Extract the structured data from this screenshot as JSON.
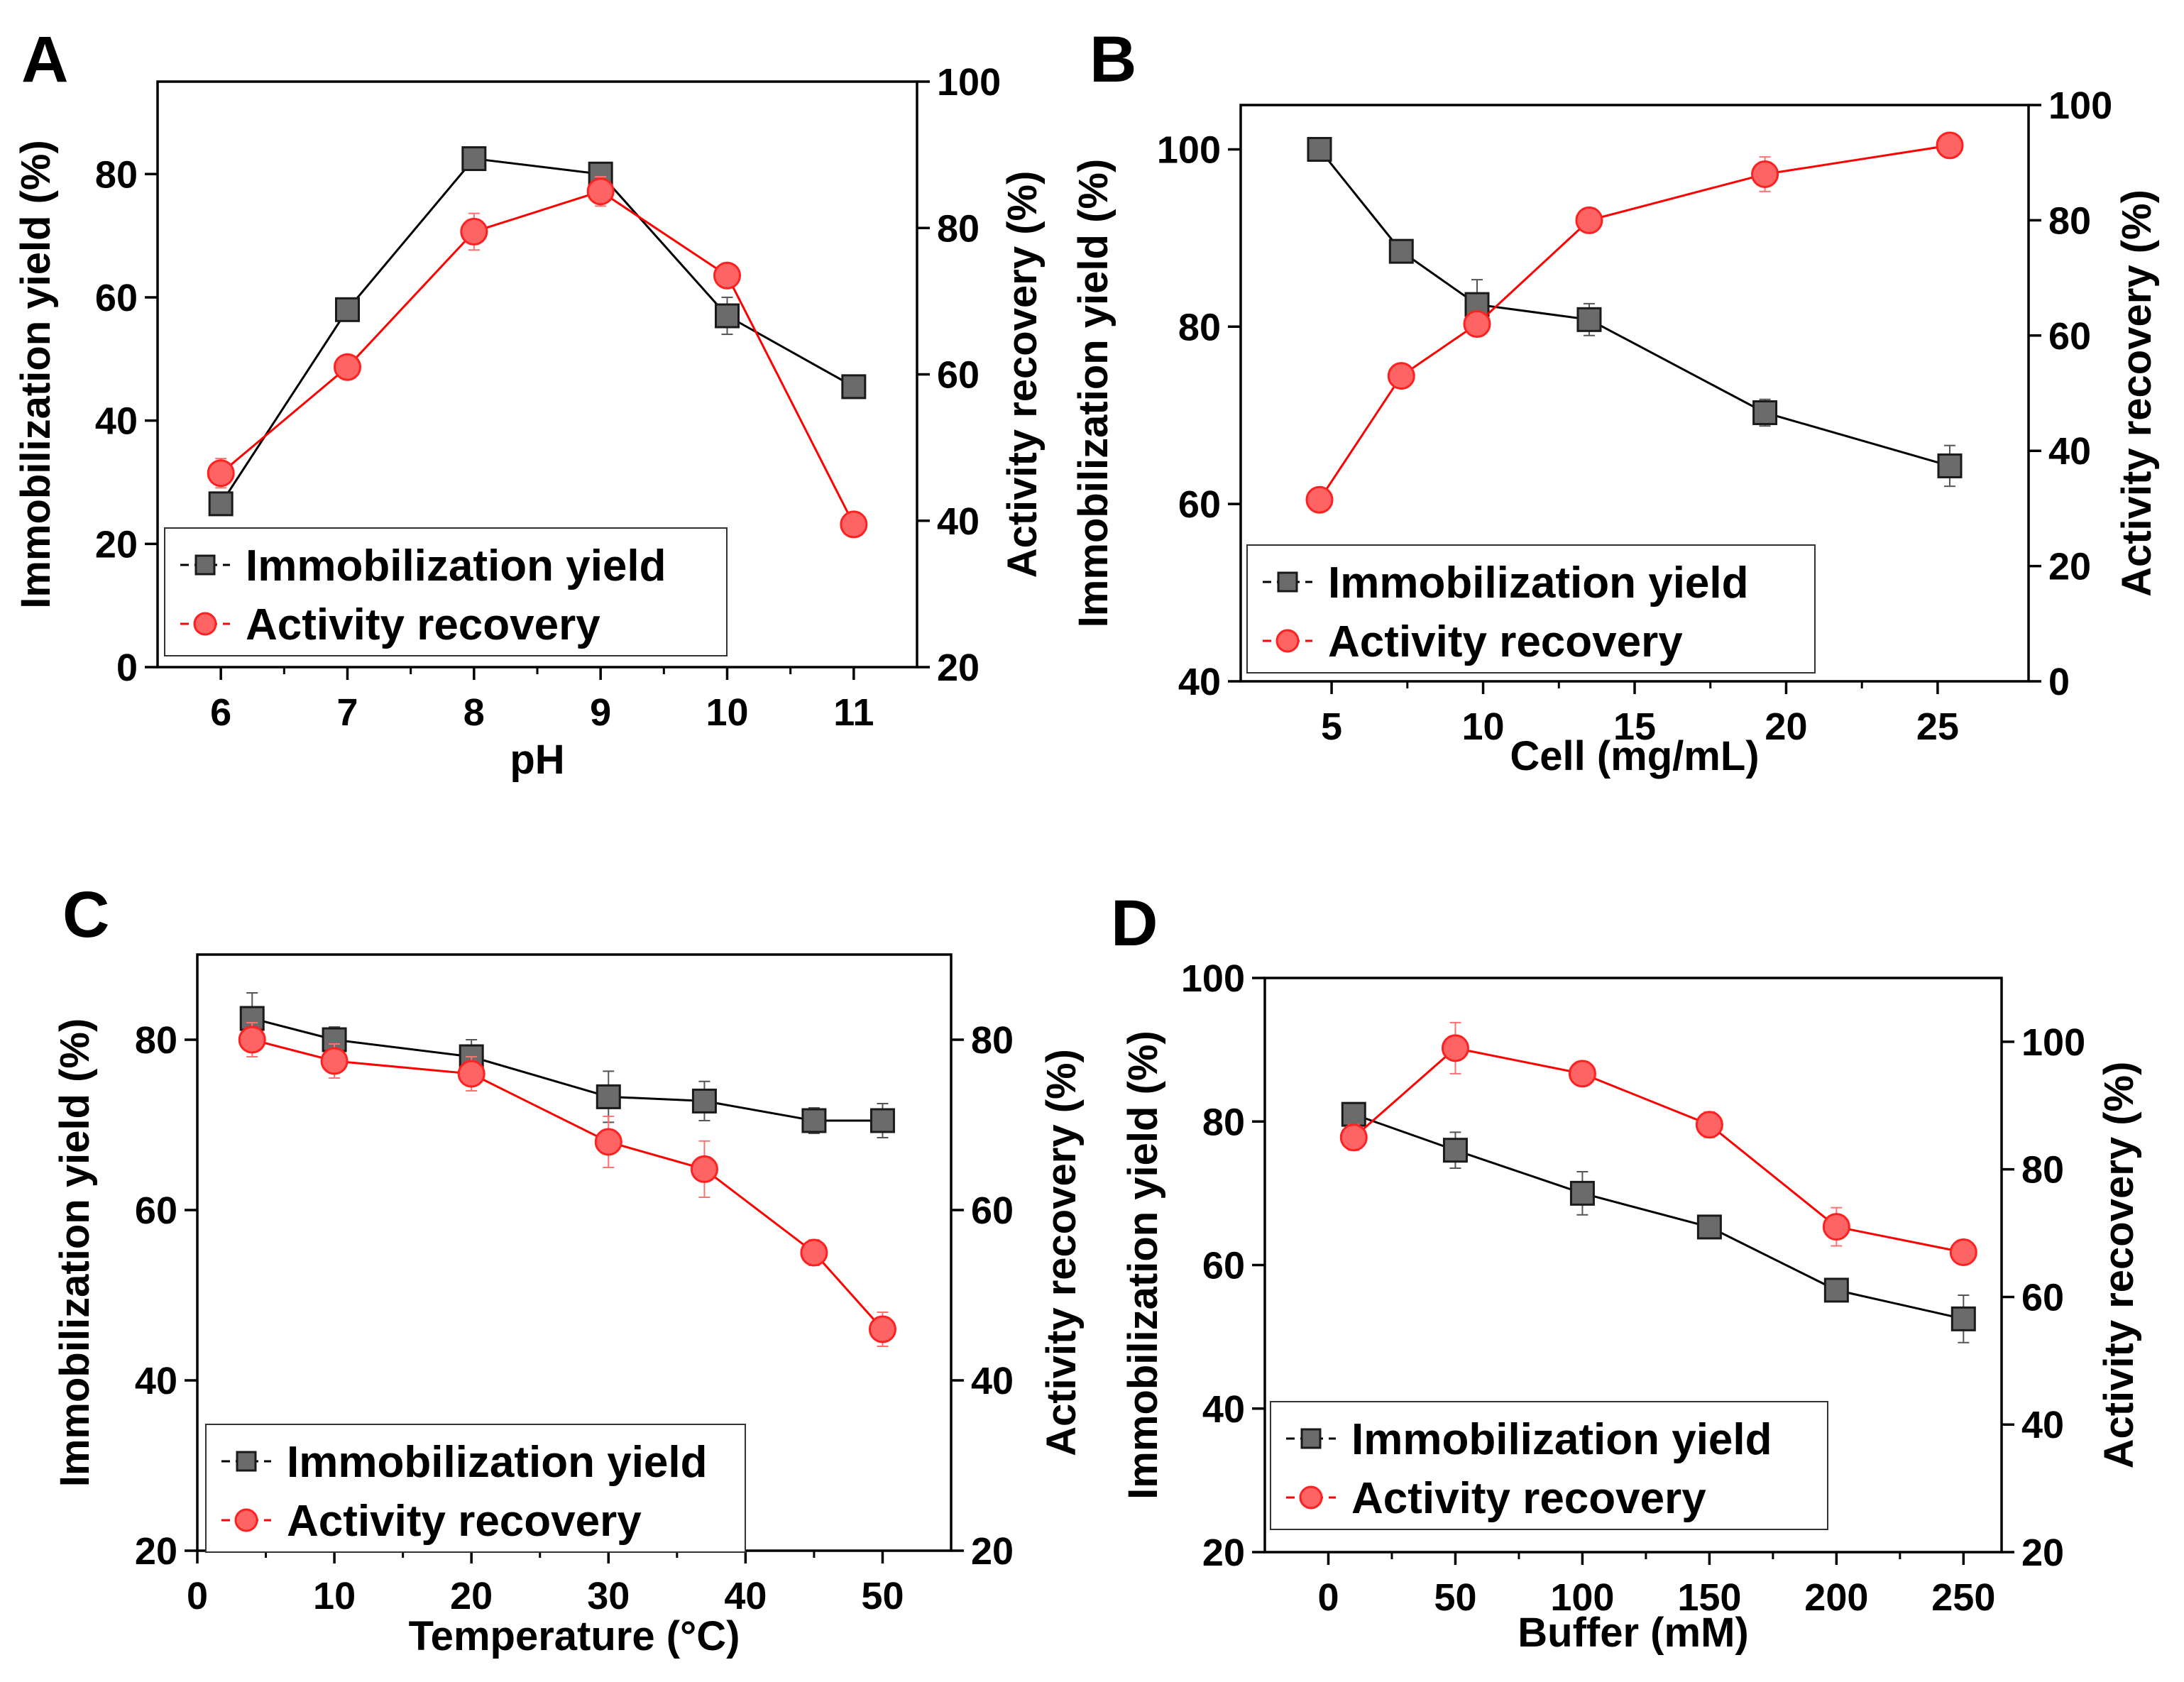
{
  "colors": {
    "immobilization": "#6b6b6b",
    "immobilization_edge": "#1a1a1a",
    "activity": "#ff6464",
    "activity_edge": "#ff2020"
  },
  "legend": {
    "immobilization": "Immobilization yield",
    "activity": "Activity recovery"
  },
  "chart_data": [
    {
      "type": "line",
      "panel": "A",
      "xlabel": "pH",
      "ylabel": "Immobilization yield (%)",
      "y2label": "Activity recovery (%)",
      "xlim": [
        5.5,
        11.5
      ],
      "ylim": [
        0,
        95
      ],
      "y2lim": [
        20,
        100
      ],
      "xticks": [
        6,
        7,
        8,
        9,
        10,
        11
      ],
      "yticks": [
        0,
        20,
        40,
        60,
        80
      ],
      "y2ticks": [
        20,
        40,
        60,
        80,
        100
      ],
      "x": [
        6,
        7,
        8,
        9,
        10,
        11
      ],
      "series": [
        {
          "name": "Immobilization yield",
          "axis": "left",
          "marker": "square",
          "values": [
            26.5,
            58,
            82.5,
            80,
            57,
            45.5
          ],
          "errors": [
            1,
            1.5,
            1,
            1.5,
            3,
            1
          ]
        },
        {
          "name": "Activity recovery",
          "axis": "right",
          "marker": "circle",
          "values": [
            46.5,
            61,
            79.5,
            85,
            73.5,
            39.5
          ],
          "errors": [
            2,
            1.5,
            2.5,
            2,
            1.5,
            1.5
          ]
        }
      ]
    },
    {
      "type": "line",
      "panel": "B",
      "xlabel": "Cell (mg/mL)",
      "ylabel": "Immobilization yield (%)",
      "y2label": "Activity recovery (%)",
      "xlim": [
        2,
        28
      ],
      "ylim": [
        40,
        105
      ],
      "y2lim": [
        0,
        100
      ],
      "xticks": [
        5,
        10,
        15,
        20,
        25
      ],
      "yticks": [
        40,
        60,
        80,
        100
      ],
      "y2ticks": [
        0,
        20,
        40,
        60,
        80,
        100
      ],
      "x": [
        4.6,
        7.3,
        9.8,
        13.5,
        19.3,
        25.4
      ],
      "series": [
        {
          "name": "Immobilization yield",
          "axis": "left",
          "marker": "square",
          "values": [
            100,
            88.5,
            82.5,
            80.8,
            70.3,
            64.3
          ],
          "errors": [
            0.5,
            0.5,
            2.8,
            1.8,
            1.5,
            2.3
          ]
        },
        {
          "name": "Activity recovery",
          "axis": "right",
          "marker": "circle",
          "values": [
            31.5,
            53,
            62,
            80,
            88,
            93
          ],
          "errors": [
            1,
            1,
            1,
            1,
            3,
            1
          ]
        }
      ]
    },
    {
      "type": "line",
      "panel": "C",
      "xlabel": "Temperature (°C)",
      "ylabel": "Immobilization yield (%)",
      "y2label": "Activity recovery (%)",
      "xlim": [
        0,
        55
      ],
      "ylim": [
        20,
        90
      ],
      "y2lim": [
        20,
        90
      ],
      "xticks": [
        0,
        10,
        20,
        30,
        40,
        50
      ],
      "yticks": [
        20,
        40,
        60,
        80
      ],
      "y2ticks": [
        20,
        40,
        60,
        80
      ],
      "x": [
        4,
        10,
        20,
        30,
        37,
        45,
        50
      ],
      "series": [
        {
          "name": "Immobilization yield",
          "axis": "left",
          "marker": "square",
          "values": [
            82.5,
            80,
            78,
            73.3,
            72.8,
            70.5,
            70.5
          ],
          "errors": [
            3,
            1.5,
            2,
            3,
            2.3,
            1.5,
            2
          ]
        },
        {
          "name": "Activity recovery",
          "axis": "right",
          "marker": "circle",
          "values": [
            80,
            77.5,
            76,
            68,
            64.8,
            55,
            46
          ],
          "errors": [
            2,
            2,
            2,
            3,
            3.3,
            1.5,
            2
          ]
        }
      ]
    },
    {
      "type": "line",
      "panel": "D",
      "xlabel": "Buffer (mM)",
      "ylabel": "Immobilization yield (%)",
      "y2label": "Activity recovery (%)",
      "xlim": [
        -25,
        265
      ],
      "ylim": [
        20,
        100
      ],
      "y2lim": [
        20,
        110
      ],
      "xticks": [
        0,
        50,
        100,
        150,
        200,
        250
      ],
      "yticks": [
        20,
        40,
        60,
        80,
        100
      ],
      "y2ticks": [
        20,
        40,
        60,
        80,
        100
      ],
      "x": [
        10,
        50,
        100,
        150,
        200,
        250
      ],
      "series": [
        {
          "name": "Immobilization yield",
          "axis": "left",
          "marker": "square",
          "values": [
            81,
            76,
            70,
            65.3,
            56.5,
            52.5
          ],
          "errors": [
            1,
            2.5,
            3,
            1,
            1,
            3.3
          ]
        },
        {
          "name": "Activity recovery",
          "axis": "right",
          "marker": "circle",
          "values": [
            85,
            99,
            95,
            87,
            71,
            67
          ],
          "errors": [
            2,
            4,
            1,
            2,
            3,
            1
          ]
        }
      ]
    }
  ]
}
